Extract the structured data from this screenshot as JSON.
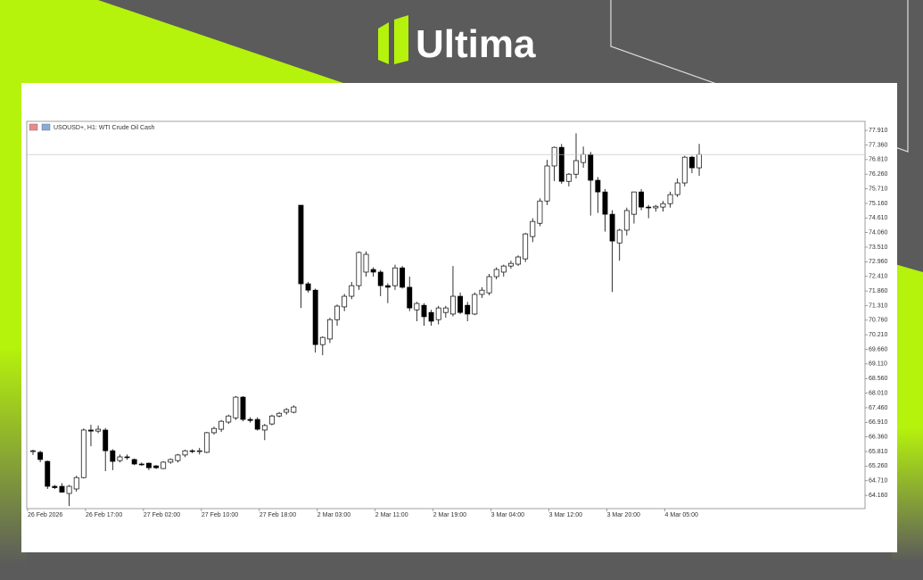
{
  "header": {
    "brand": "Ultima"
  },
  "chart_data": {
    "type": "candlestick",
    "title": "USOUSD+, H1: WTI Crude Oil Cash",
    "up_color": "#ffffff",
    "down_color": "#000000",
    "grid": false,
    "open": [
      65.81,
      65.78,
      65.44,
      64.5,
      64.5,
      64.23,
      64.4,
      64.83,
      66.62,
      66.58,
      66.62,
      65.84,
      65.47,
      65.61,
      65.51,
      65.34,
      65.37,
      65.27,
      65.17,
      65.41,
      65.47,
      65.68,
      65.84,
      65.81,
      65.78,
      66.52,
      66.65,
      66.92,
      67.08,
      67.86,
      67.02,
      67.02,
      66.62,
      66.85,
      67.15,
      67.29,
      67.29,
      75.09,
      72.13,
      71.89,
      69.84,
      70.05,
      70.78,
      71.26,
      71.66,
      72.06,
      72.57,
      72.67,
      72.57,
      72.06,
      72.06,
      72.73,
      72.0,
      71.15,
      71.32,
      71.05,
      70.78,
      71.05,
      70.99,
      71.66,
      71.32,
      70.99,
      71.73,
      71.79,
      72.4,
      72.57,
      72.8,
      72.87,
      73.07,
      73.91,
      74.41,
      75.25,
      76.57,
      77.27,
      75.99,
      76.26,
      76.7,
      77.0,
      76.03,
      75.59,
      74.75,
      73.67,
      74.15,
      74.75,
      75.59,
      75.02,
      74.99,
      75.02,
      75.15,
      75.49,
      75.93,
      76.9,
      76.5
    ],
    "high": [
      65.88,
      65.84,
      65.47,
      64.55,
      64.62,
      64.55,
      64.9,
      66.68,
      66.82,
      66.79,
      66.7,
      65.9,
      65.7,
      65.7,
      65.55,
      65.4,
      65.4,
      65.3,
      65.45,
      65.55,
      65.72,
      65.88,
      65.9,
      65.95,
      66.55,
      66.75,
      67.0,
      67.2,
      67.9,
      67.9,
      67.1,
      67.1,
      66.85,
      67.2,
      67.3,
      67.45,
      67.55,
      75.09,
      72.2,
      71.95,
      70.15,
      70.85,
      71.35,
      71.75,
      72.2,
      73.35,
      73.35,
      72.75,
      72.65,
      72.15,
      72.85,
      72.8,
      72.4,
      71.45,
      71.4,
      71.15,
      71.3,
      71.3,
      72.8,
      71.8,
      71.45,
      71.8,
      72.0,
      72.5,
      72.75,
      72.85,
      73.0,
      73.2,
      74.05,
      74.6,
      75.35,
      76.8,
      77.3,
      77.4,
      76.3,
      77.8,
      77.3,
      77.1,
      76.15,
      75.7,
      74.9,
      74.2,
      75.0,
      75.6,
      75.7,
      75.1,
      75.1,
      75.25,
      75.6,
      76.1,
      76.95,
      76.95,
      77.4
    ],
    "low": [
      65.68,
      65.41,
      64.4,
      64.4,
      64.26,
      63.76,
      64.3,
      64.8,
      66.01,
      66.5,
      65.07,
      65.11,
      65.4,
      65.5,
      65.3,
      65.27,
      65.11,
      65.15,
      65.15,
      65.35,
      65.4,
      65.6,
      65.75,
      65.7,
      65.75,
      66.45,
      66.55,
      66.85,
      67.0,
      66.95,
      66.9,
      66.6,
      66.24,
      66.8,
      67.1,
      67.2,
      67.25,
      71.22,
      71.8,
      69.54,
      69.44,
      69.9,
      70.55,
      71.1,
      71.55,
      71.9,
      72.4,
      72.4,
      71.66,
      71.4,
      71.9,
      71.95,
      71.1,
      70.72,
      70.55,
      70.55,
      70.6,
      70.85,
      70.9,
      70.99,
      70.72,
      70.95,
      71.6,
      71.7,
      72.3,
      72.4,
      72.7,
      72.8,
      72.95,
      73.7,
      74.3,
      75.1,
      76.0,
      75.9,
      75.8,
      76.1,
      76.5,
      74.7,
      74.8,
      74.1,
      71.82,
      73.0,
      73.95,
      74.4,
      74.9,
      74.6,
      74.85,
      74.85,
      75.0,
      75.4,
      75.8,
      76.3,
      76.2
    ],
    "close": [
      65.84,
      65.51,
      64.5,
      64.45,
      64.28,
      64.5,
      64.83,
      66.62,
      66.58,
      66.65,
      65.84,
      65.44,
      65.61,
      65.58,
      65.34,
      65.31,
      65.2,
      65.2,
      65.41,
      65.51,
      65.68,
      65.84,
      65.81,
      65.84,
      66.52,
      66.68,
      66.95,
      67.15,
      67.86,
      67.02,
      66.98,
      66.65,
      66.79,
      67.15,
      67.25,
      67.39,
      67.49,
      72.13,
      71.89,
      69.84,
      70.11,
      70.78,
      71.29,
      71.66,
      72.06,
      73.31,
      73.24,
      72.57,
      72.06,
      72.0,
      72.73,
      72.0,
      71.22,
      71.39,
      70.89,
      70.72,
      71.22,
      71.22,
      71.66,
      71.05,
      70.99,
      71.73,
      71.89,
      72.4,
      72.67,
      72.8,
      72.9,
      73.14,
      74.01,
      74.48,
      75.25,
      76.57,
      77.27,
      75.99,
      76.26,
      76.77,
      77.0,
      76.03,
      75.59,
      74.75,
      73.74,
      74.15,
      74.89,
      75.59,
      75.02,
      74.99,
      75.05,
      75.15,
      75.49,
      75.93,
      76.9,
      76.5,
      77.0
    ],
    "ylim": [
      63.66,
      78.25
    ],
    "yticks": [
      {
        "value": 64.16,
        "label": "64.160"
      },
      {
        "value": 64.71,
        "label": "64.710"
      },
      {
        "value": 65.26,
        "label": "65.260"
      },
      {
        "value": 65.81,
        "label": "65.810"
      },
      {
        "value": 66.36,
        "label": "66.360"
      },
      {
        "value": 66.91,
        "label": "66.910"
      },
      {
        "value": 67.46,
        "label": "67.460"
      },
      {
        "value": 68.01,
        "label": "68.010"
      },
      {
        "value": 68.56,
        "label": "68.560"
      },
      {
        "value": 69.11,
        "label": "69.110"
      },
      {
        "value": 69.66,
        "label": "69.660"
      },
      {
        "value": 70.21,
        "label": "70.210"
      },
      {
        "value": 70.76,
        "label": "70.760"
      },
      {
        "value": 71.31,
        "label": "71.310"
      },
      {
        "value": 71.86,
        "label": "71.860"
      },
      {
        "value": 72.41,
        "label": "72.410"
      },
      {
        "value": 72.96,
        "label": "72.960"
      },
      {
        "value": 73.51,
        "label": "73.510"
      },
      {
        "value": 74.06,
        "label": "74.060"
      },
      {
        "value": 74.61,
        "label": "74.610"
      },
      {
        "value": 75.16,
        "label": "75.160"
      },
      {
        "value": 75.71,
        "label": "75.710"
      },
      {
        "value": 76.26,
        "label": "76.260"
      },
      {
        "value": 76.81,
        "label": "76.810"
      },
      {
        "value": 77.36,
        "label": "77.360"
      },
      {
        "value": 77.91,
        "label": "77.910"
      }
    ],
    "xticks": [
      "26 Feb 2026",
      "26 Feb 17:00",
      "27 Feb 02:00",
      "27 Feb 10:00",
      "27 Feb 18:00",
      "2 Mar 03:00",
      "2 Mar 11:00",
      "2 Mar 19:00",
      "3 Mar 04:00",
      "3 Mar 12:00",
      "3 Mar 20:00",
      "4 Mar 05:00"
    ]
  }
}
